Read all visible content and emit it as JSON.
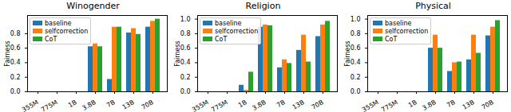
{
  "chart_data": [
    {
      "type": "bar",
      "title": "Winogender",
      "ylabel": "Fairness",
      "legend": "upper left",
      "categories": [
        "355M",
        "775M",
        "1B",
        "3.8B",
        "7B",
        "13B",
        "70B"
      ],
      "series": [
        {
          "name": "baseline",
          "color": "#1f77b4",
          "values": [
            0,
            0,
            0,
            0.62,
            0.17,
            0.81,
            0.89
          ]
        },
        {
          "name": "selfcorrection",
          "color": "#ff7f0e",
          "values": [
            0,
            0,
            0,
            0.66,
            0.89,
            0.87,
            0.97
          ]
        },
        {
          "name": "CoT",
          "color": "#2ca02c",
          "values": [
            0,
            0,
            0,
            0.62,
            0.89,
            0.79,
            1.0
          ]
        }
      ],
      "ylim": [
        0,
        1.05
      ],
      "yticks": [
        {
          "value": 0,
          "label": "0.0"
        },
        {
          "value": 0.2,
          "label": "0.2"
        },
        {
          "value": 0.4,
          "label": "0.4"
        },
        {
          "value": 0.6,
          "label": "0.6"
        },
        {
          "value": 0.8,
          "label": "0.8"
        }
      ]
    },
    {
      "type": "bar",
      "title": "Religion",
      "ylabel": "Fairness",
      "legend": "upper left",
      "categories": [
        "355M",
        "775M",
        "1B",
        "3.8B",
        "7B",
        "13B",
        "70B"
      ],
      "series": [
        {
          "name": "baseline",
          "color": "#1f77b4",
          "values": [
            0,
            0,
            0.09,
            0.89,
            0.33,
            0.57,
            0.76
          ]
        },
        {
          "name": "selfcorrection",
          "color": "#ff7f0e",
          "values": [
            0,
            0,
            0.02,
            0.92,
            0.44,
            0.78,
            0.92
          ]
        },
        {
          "name": "CoT",
          "color": "#2ca02c",
          "values": [
            0,
            0,
            0.27,
            0.91,
            0.39,
            0.41,
            0.97
          ]
        }
      ],
      "ylim": [
        0,
        1.05
      ],
      "yticks": [
        {
          "value": 0,
          "label": "0.0"
        },
        {
          "value": 0.2,
          "label": "0.2"
        },
        {
          "value": 0.4,
          "label": "0.4"
        },
        {
          "value": 0.6,
          "label": "0.6"
        },
        {
          "value": 0.8,
          "label": "0.8"
        },
        {
          "value": 1,
          "label": "1.0"
        }
      ]
    },
    {
      "type": "bar",
      "title": "Physical",
      "ylabel": "Fairness",
      "legend": "upper left",
      "categories": [
        "355M",
        "775M",
        "1B",
        "3.8B",
        "7B",
        "13B",
        "70B"
      ],
      "series": [
        {
          "name": "baseline",
          "color": "#1f77b4",
          "values": [
            0,
            0,
            0,
            0.6,
            0.28,
            0.44,
            0.77
          ]
        },
        {
          "name": "selfcorrection",
          "color": "#ff7f0e",
          "values": [
            0,
            0,
            0,
            0.78,
            0.4,
            0.78,
            0.89
          ]
        },
        {
          "name": "CoT",
          "color": "#2ca02c",
          "values": [
            0,
            0,
            0,
            0.6,
            0.41,
            0.53,
            0.98
          ]
        }
      ],
      "ylim": [
        0,
        1.05
      ],
      "yticks": [
        {
          "value": 0,
          "label": "0.0"
        },
        {
          "value": 0.2,
          "label": "0.2"
        },
        {
          "value": 0.4,
          "label": "0.4"
        },
        {
          "value": 0.6,
          "label": "0.6"
        },
        {
          "value": 0.8,
          "label": "0.8"
        },
        {
          "value": 1,
          "label": "1.0"
        }
      ]
    }
  ]
}
